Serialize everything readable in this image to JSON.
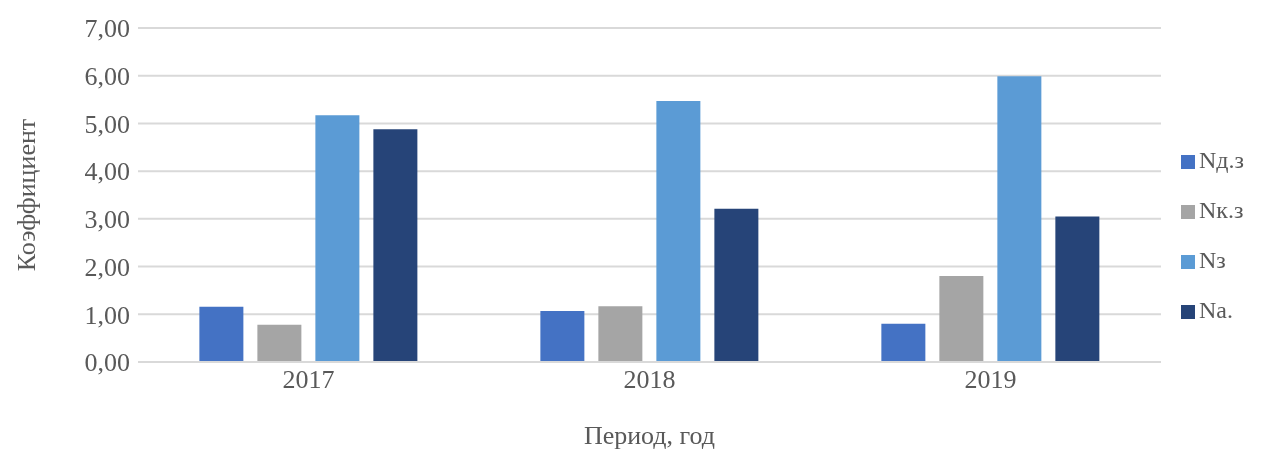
{
  "chart_data": {
    "type": "bar",
    "xlabel": "Период, год",
    "ylabel": "Коэффициент",
    "categories": [
      "2017",
      "2018",
      "2019"
    ],
    "series": [
      {
        "name": "Nд.з",
        "color": "#4472c4",
        "values": [
          1.16,
          1.07,
          0.8
        ]
      },
      {
        "name": "Nк.з",
        "color": "#a5a5a5",
        "values": [
          0.78,
          1.17,
          1.8
        ]
      },
      {
        "name": "Nз",
        "color": "#5b9bd5",
        "values": [
          5.17,
          5.47,
          5.99
        ]
      },
      {
        "name": "Na.",
        "color": "#264478",
        "values": [
          4.88,
          3.21,
          3.05
        ]
      }
    ],
    "ylim": [
      0,
      7
    ],
    "yticks": [
      {
        "value": 0,
        "label": "0,00"
      },
      {
        "value": 1,
        "label": "1,00"
      },
      {
        "value": 2,
        "label": "2,00"
      },
      {
        "value": 3,
        "label": "3,00"
      },
      {
        "value": 4,
        "label": "4,00"
      },
      {
        "value": 5,
        "label": "5,00"
      },
      {
        "value": 6,
        "label": "6,00"
      },
      {
        "value": 7,
        "label": "7,00"
      }
    ],
    "grid": "y",
    "legend": "right"
  }
}
